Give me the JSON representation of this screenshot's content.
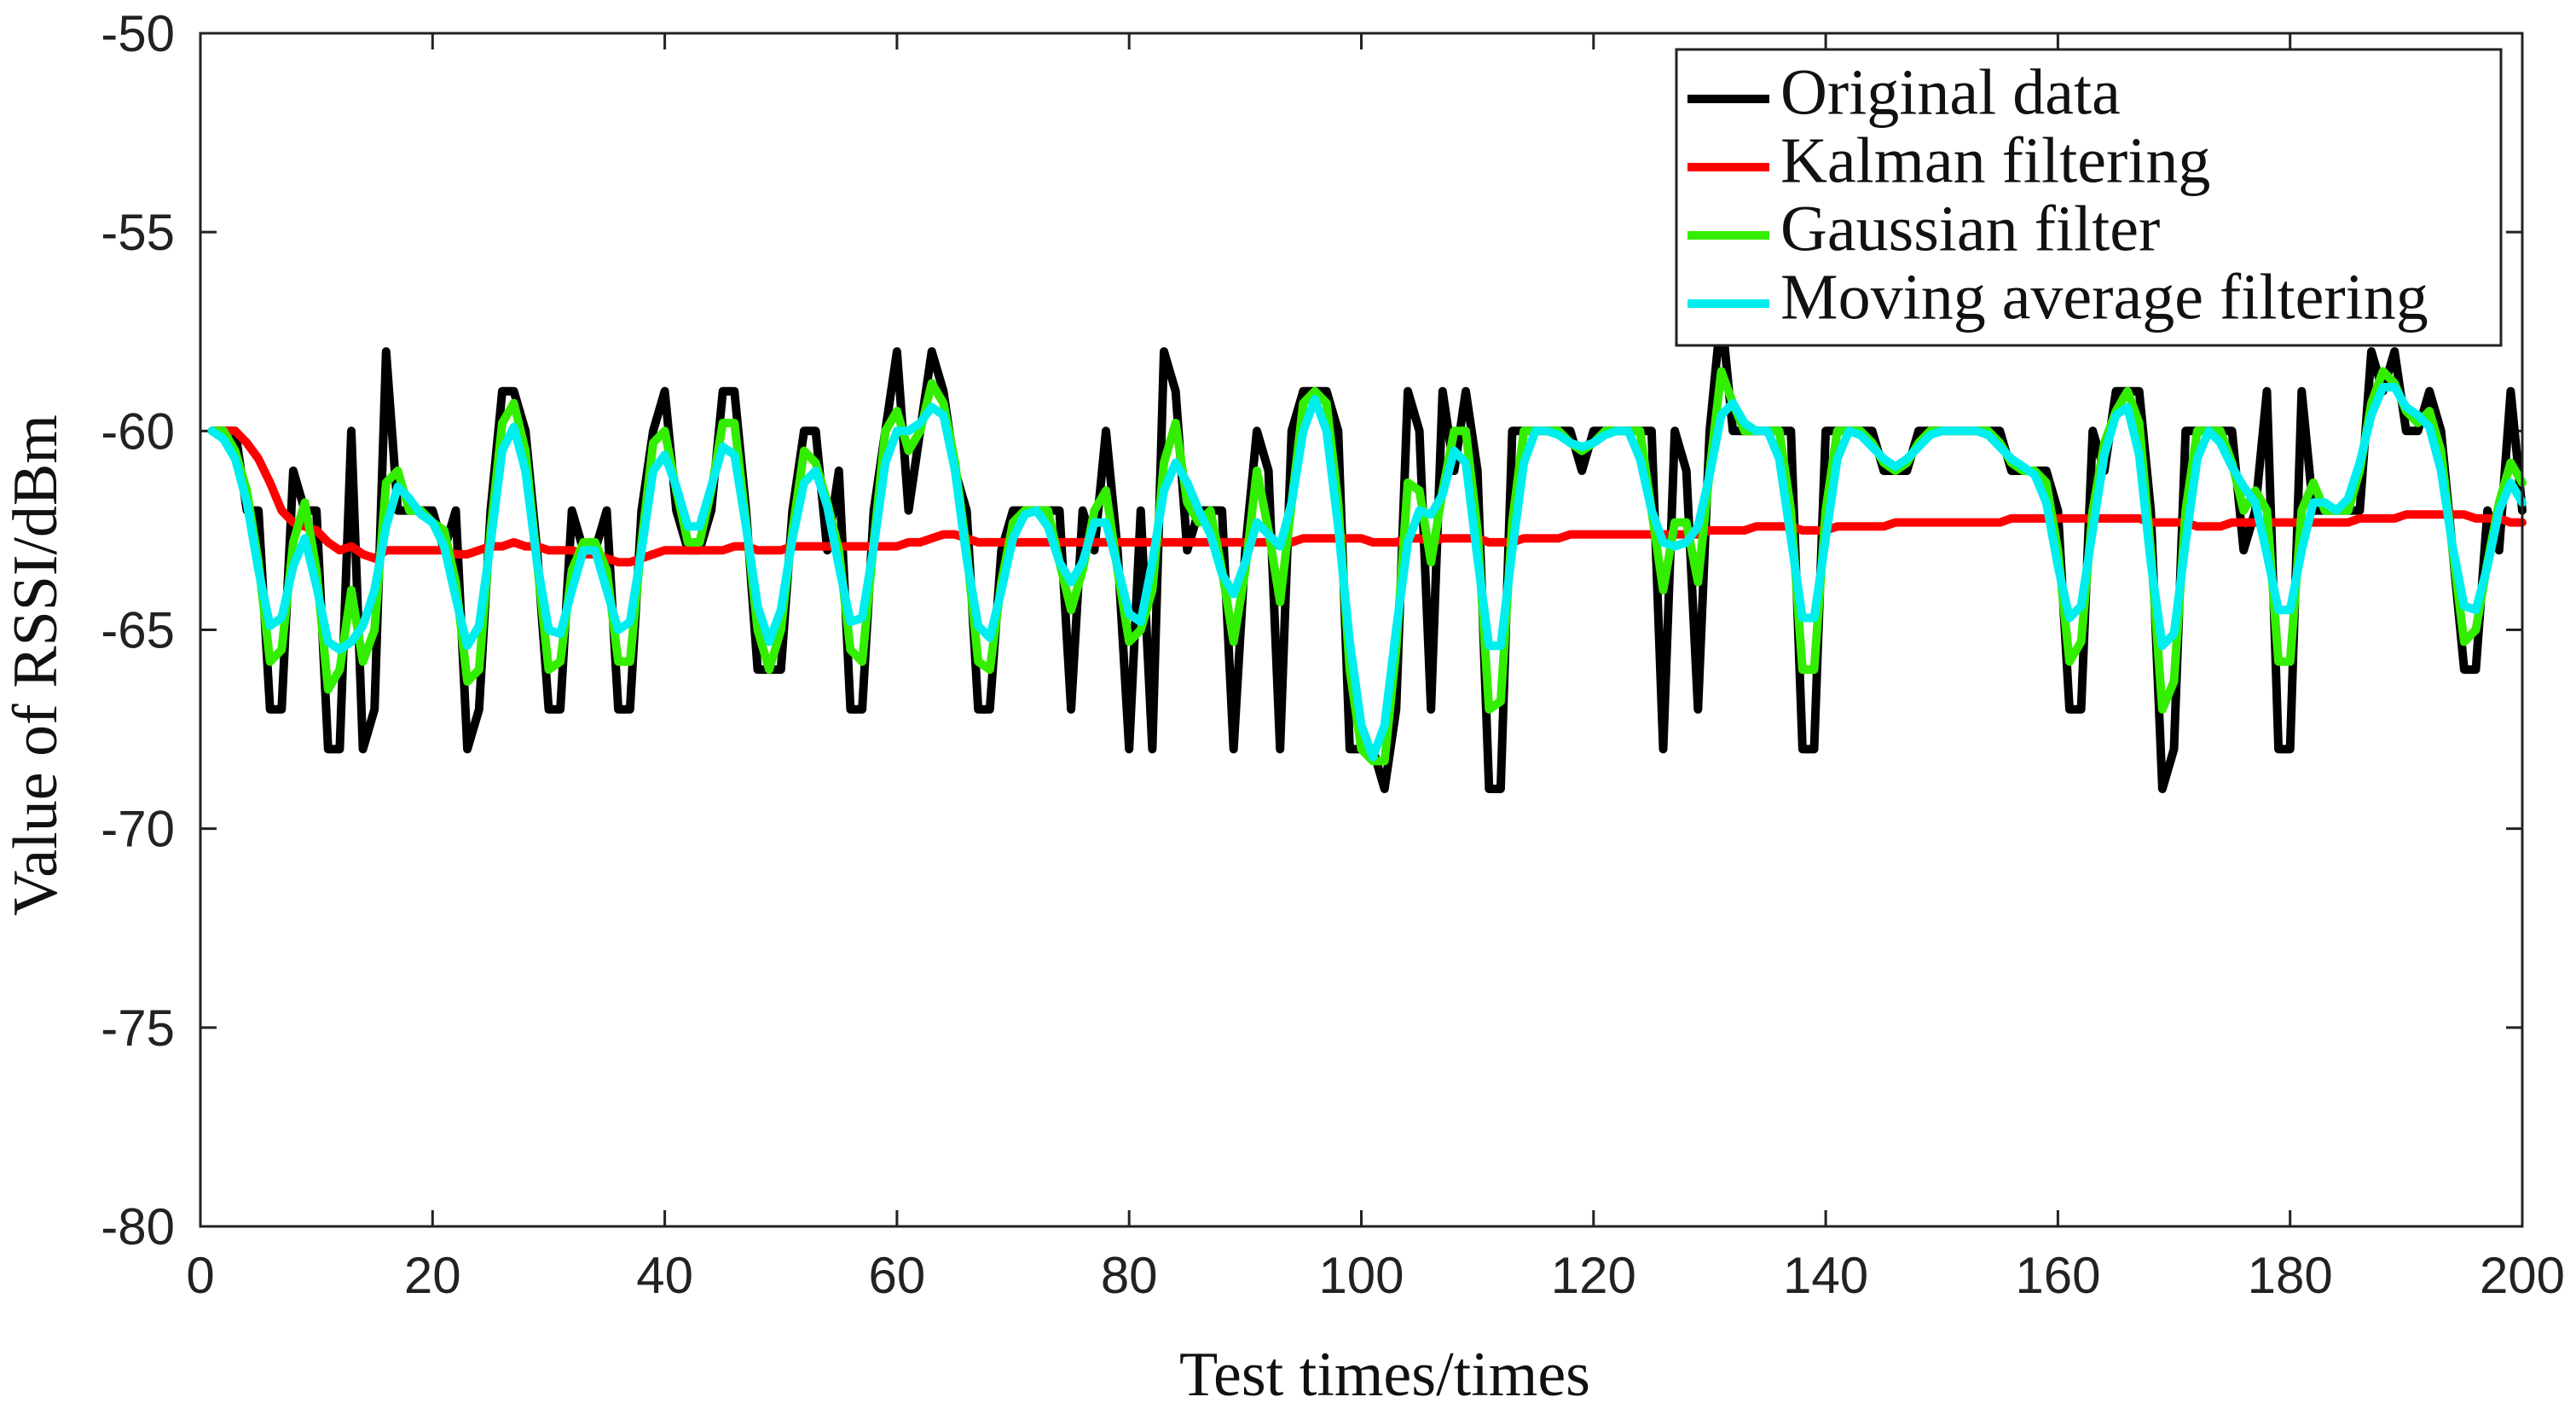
{
  "chart_data": {
    "type": "line",
    "xlabel": "Test times/times",
    "ylabel": "Value of RSSI/dBm",
    "xlim": [
      0,
      200
    ],
    "xticks": [
      0,
      20,
      40,
      60,
      80,
      100,
      120,
      140,
      160,
      180,
      200
    ],
    "ylim": [
      -80,
      -50
    ],
    "yticks": [
      -80,
      -75,
      -70,
      -65,
      -60,
      -55,
      -50
    ],
    "legend": "northeast",
    "x": [
      1,
      2,
      3,
      4,
      5,
      6,
      7,
      8,
      9,
      10,
      11,
      12,
      13,
      14,
      15,
      16,
      17,
      18,
      19,
      20,
      21,
      22,
      23,
      24,
      25,
      26,
      27,
      28,
      29,
      30,
      31,
      32,
      33,
      34,
      35,
      36,
      37,
      38,
      39,
      40,
      41,
      42,
      43,
      44,
      45,
      46,
      47,
      48,
      49,
      50,
      51,
      52,
      53,
      54,
      55,
      56,
      57,
      58,
      59,
      60,
      61,
      62,
      63,
      64,
      65,
      66,
      67,
      68,
      69,
      70,
      71,
      72,
      73,
      74,
      75,
      76,
      77,
      78,
      79,
      80,
      81,
      82,
      83,
      84,
      85,
      86,
      87,
      88,
      89,
      90,
      91,
      92,
      93,
      94,
      95,
      96,
      97,
      98,
      99,
      100,
      101,
      102,
      103,
      104,
      105,
      106,
      107,
      108,
      109,
      110,
      111,
      112,
      113,
      114,
      115,
      116,
      117,
      118,
      119,
      120,
      121,
      122,
      123,
      124,
      125,
      126,
      127,
      128,
      129,
      130,
      131,
      132,
      133,
      134,
      135,
      136,
      137,
      138,
      139,
      140,
      141,
      142,
      143,
      144,
      145,
      146,
      147,
      148,
      149,
      150,
      151,
      152,
      153,
      154,
      155,
      156,
      157,
      158,
      159,
      160,
      161,
      162,
      163,
      164,
      165,
      166,
      167,
      168,
      169,
      170,
      171,
      172,
      173,
      174,
      175,
      176,
      177,
      178,
      179,
      180,
      181,
      182,
      183,
      184,
      185,
      186,
      187,
      188,
      189,
      190,
      191,
      192,
      193,
      194,
      195,
      196,
      197,
      198,
      199,
      200
    ],
    "series": [
      {
        "name": "Original data",
        "color": "#000000",
        "values": [
          -60,
          -60,
          -60,
          -62,
          -62,
          -67,
          -67,
          -61,
          -62,
          -62,
          -68,
          -68,
          -60,
          -68,
          -67,
          -58,
          -62,
          -62,
          -62,
          -62,
          -63,
          -62,
          -68,
          -67,
          -62,
          -59,
          -59,
          -60,
          -63,
          -67,
          -67,
          -62,
          -63,
          -63,
          -62,
          -67,
          -67,
          -62,
          -60,
          -59,
          -62,
          -63,
          -63,
          -62,
          -59,
          -59,
          -62,
          -66,
          -66,
          -66,
          -62,
          -60,
          -60,
          -63,
          -61,
          -67,
          -67,
          -62,
          -60,
          -58,
          -62,
          -60,
          -58,
          -59,
          -61,
          -62,
          -67,
          -67,
          -63,
          -62,
          -62,
          -62,
          -62,
          -62,
          -67,
          -62,
          -63,
          -60,
          -63,
          -68,
          -62,
          -68,
          -58,
          -59,
          -63,
          -62,
          -62,
          -62,
          -68,
          -63,
          -60,
          -61,
          -68,
          -60,
          -59,
          -59,
          -59,
          -60,
          -68,
          -68,
          -68,
          -69,
          -67,
          -59,
          -60,
          -67,
          -59,
          -61,
          -59,
          -61,
          -69,
          -69,
          -60,
          -60,
          -60,
          -60,
          -60,
          -60,
          -61,
          -60,
          -60,
          -60,
          -60,
          -60,
          -60,
          -68,
          -60,
          -61,
          -67,
          -60,
          -57,
          -60,
          -60,
          -60,
          -60,
          -60,
          -60,
          -68,
          -68,
          -60,
          -60,
          -60,
          -60,
          -60,
          -61,
          -61,
          -61,
          -60,
          -60,
          -60,
          -60,
          -60,
          -60,
          -60,
          -60,
          -61,
          -61,
          -61,
          -61,
          -62,
          -67,
          -67,
          -60,
          -61,
          -59,
          -59,
          -59,
          -62,
          -69,
          -68,
          -60,
          -60,
          -60,
          -60,
          -60,
          -63,
          -62,
          -59,
          -68,
          -68,
          -59,
          -62,
          -62,
          -62,
          -62,
          -62,
          -58,
          -59,
          -58,
          -60,
          -60,
          -59,
          -60,
          -63,
          -66,
          -66,
          -62,
          -63,
          -59,
          -62
        ]
      },
      {
        "name": "Kalman filtering",
        "color": "#ff0000",
        "values": [
          -60,
          -60,
          -60,
          -60.3,
          -60.7,
          -61.3,
          -62,
          -62.3,
          -62.4,
          -62.5,
          -62.8,
          -63,
          -62.9,
          -63.1,
          -63.2,
          -63,
          -63,
          -63,
          -63,
          -63,
          -63,
          -63.1,
          -63.1,
          -63,
          -62.9,
          -62.9,
          -62.8,
          -62.9,
          -62.9,
          -63,
          -63,
          -63,
          -63.1,
          -63.1,
          -63.2,
          -63.3,
          -63.3,
          -63.2,
          -63.1,
          -63,
          -63,
          -63,
          -63,
          -63,
          -63,
          -62.9,
          -62.9,
          -63,
          -63,
          -63,
          -62.9,
          -62.9,
          -62.9,
          -62.9,
          -62.9,
          -62.9,
          -62.9,
          -62.9,
          -62.9,
          -62.9,
          -62.8,
          -62.8,
          -62.7,
          -62.6,
          -62.6,
          -62.7,
          -62.8,
          -62.8,
          -62.8,
          -62.8,
          -62.8,
          -62.8,
          -62.8,
          -62.8,
          -62.8,
          -62.8,
          -62.8,
          -62.8,
          -62.8,
          -62.8,
          -62.8,
          -62.8,
          -62.8,
          -62.8,
          -62.8,
          -62.8,
          -62.8,
          -62.8,
          -62.8,
          -62.8,
          -62.8,
          -62.8,
          -62.8,
          -62.8,
          -62.7,
          -62.7,
          -62.7,
          -62.7,
          -62.7,
          -62.7,
          -62.8,
          -62.8,
          -62.8,
          -62.7,
          -62.7,
          -62.8,
          -62.7,
          -62.7,
          -62.7,
          -62.7,
          -62.8,
          -62.8,
          -62.8,
          -62.7,
          -62.7,
          -62.7,
          -62.7,
          -62.6,
          -62.6,
          -62.6,
          -62.6,
          -62.6,
          -62.6,
          -62.6,
          -62.6,
          -62.6,
          -62.6,
          -62.6,
          -62.6,
          -62.5,
          -62.5,
          -62.5,
          -62.5,
          -62.4,
          -62.4,
          -62.4,
          -62.4,
          -62.5,
          -62.5,
          -62.5,
          -62.4,
          -62.4,
          -62.4,
          -62.4,
          -62.4,
          -62.3,
          -62.3,
          -62.3,
          -62.3,
          -62.3,
          -62.3,
          -62.3,
          -62.3,
          -62.3,
          -62.3,
          -62.2,
          -62.2,
          -62.2,
          -62.2,
          -62.2,
          -62.2,
          -62.2,
          -62.2,
          -62.2,
          -62.2,
          -62.2,
          -62.2,
          -62.3,
          -62.3,
          -62.3,
          -62.3,
          -62.4,
          -62.4,
          -62.4,
          -62.3,
          -62.3,
          -62.3,
          -62.3,
          -62.3,
          -62.3,
          -62.3,
          -62.3,
          -62.3,
          -62.3,
          -62.3,
          -62.2,
          -62.2,
          -62.2,
          -62.2,
          -62.1,
          -62.1,
          -62.1,
          -62.1,
          -62.1,
          -62.1,
          -62.2,
          -62.2,
          -62.2,
          -62.3,
          -62.3
        ]
      },
      {
        "name": "Gaussian filter",
        "color": "#33ee00",
        "values": [
          -60,
          -60,
          -60.5,
          -61.5,
          -63.3,
          -65.8,
          -65.5,
          -62.8,
          -61.8,
          -63.5,
          -66.5,
          -66,
          -64,
          -65.8,
          -65,
          -61.3,
          -61,
          -62,
          -62,
          -62.3,
          -62.5,
          -63.8,
          -66.3,
          -66,
          -62.5,
          -59.8,
          -59.3,
          -60.5,
          -63.3,
          -66,
          -65.8,
          -63.5,
          -62.8,
          -62.8,
          -63.5,
          -65.8,
          -65.8,
          -62.8,
          -60.3,
          -60,
          -61.5,
          -62.8,
          -62.8,
          -61.5,
          -59.8,
          -59.8,
          -62.3,
          -65,
          -66,
          -65,
          -62.5,
          -60.5,
          -60.8,
          -61.8,
          -63,
          -65.5,
          -65.8,
          -62.8,
          -60,
          -59.5,
          -60.5,
          -60,
          -58.8,
          -59.3,
          -60.8,
          -63,
          -65.8,
          -66,
          -63.8,
          -62.3,
          -62,
          -62,
          -62,
          -63.3,
          -64.5,
          -63.5,
          -62,
          -61.5,
          -63.5,
          -65.3,
          -65,
          -64,
          -60.8,
          -59.8,
          -61.8,
          -62.3,
          -62,
          -63.5,
          -65.3,
          -63.5,
          -61,
          -62.5,
          -64.3,
          -61.8,
          -59.3,
          -59,
          -59.3,
          -61.8,
          -66,
          -68,
          -68.3,
          -68.3,
          -65.5,
          -61.3,
          -61.5,
          -63.3,
          -61.5,
          -60,
          -60,
          -62.5,
          -67,
          -66.8,
          -62.3,
          -60,
          -60,
          -60,
          -60,
          -60.3,
          -60.5,
          -60.3,
          -60,
          -60,
          -60,
          -60,
          -62,
          -64,
          -62.3,
          -62.3,
          -63.8,
          -61,
          -58.5,
          -59.3,
          -60,
          -60,
          -60,
          -60,
          -62,
          -66,
          -66,
          -62,
          -60,
          -60,
          -60,
          -60.3,
          -60.8,
          -61,
          -60.8,
          -60.3,
          -60,
          -60,
          -60,
          -60,
          -60,
          -60,
          -60.3,
          -60.8,
          -61,
          -61,
          -61.3,
          -63,
          -65.8,
          -65.3,
          -62,
          -60.3,
          -59.5,
          -59,
          -59.8,
          -63,
          -67,
          -66.3,
          -62,
          -60,
          -60,
          -60,
          -60.8,
          -62,
          -61.5,
          -62,
          -65.8,
          -65.8,
          -62,
          -61.3,
          -62,
          -62,
          -62,
          -61,
          -59.3,
          -58.5,
          -58.8,
          -59.5,
          -59.8,
          -59.5,
          -60.5,
          -63,
          -65.3,
          -65,
          -63.3,
          -61.8,
          -60.8,
          -61.3
        ]
      },
      {
        "name": "Moving average filtering",
        "color": "#00eeee",
        "values": [
          -60,
          -60.2,
          -60.7,
          -61.8,
          -63.5,
          -64.9,
          -64.7,
          -63.4,
          -62.7,
          -63.9,
          -65.3,
          -65.5,
          -65.3,
          -64.9,
          -64,
          -62.4,
          -61.4,
          -61.7,
          -62.1,
          -62.3,
          -62.9,
          -64.2,
          -65.4,
          -64.9,
          -62.8,
          -60.5,
          -59.9,
          -61,
          -63.3,
          -65,
          -65.1,
          -64,
          -63,
          -63,
          -64,
          -65,
          -64.8,
          -63,
          -61,
          -60.6,
          -61.4,
          -62.4,
          -62.4,
          -61.4,
          -60.4,
          -60.6,
          -62.4,
          -64.4,
          -65.3,
          -64.5,
          -62.7,
          -61.3,
          -61,
          -61.9,
          -63.4,
          -64.8,
          -64.7,
          -62.9,
          -60.8,
          -60,
          -60,
          -59.8,
          -59.4,
          -59.6,
          -61,
          -63.2,
          -64.9,
          -65.2,
          -64,
          -62.7,
          -62.1,
          -62,
          -62.4,
          -63.3,
          -63.8,
          -63.3,
          -62.3,
          -62.3,
          -63.4,
          -64.6,
          -64.8,
          -63.3,
          -61.5,
          -60.8,
          -61.3,
          -62,
          -62.6,
          -63.6,
          -64.1,
          -63.3,
          -62.3,
          -62.6,
          -62.9,
          -61.8,
          -60,
          -59.2,
          -60,
          -62.4,
          -65.3,
          -67.4,
          -68.2,
          -67.4,
          -65,
          -62.8,
          -62,
          -62.1,
          -61.6,
          -60.5,
          -60.8,
          -63.2,
          -65.4,
          -65.4,
          -63,
          -60.8,
          -60,
          -60,
          -60.1,
          -60.3,
          -60.4,
          -60.3,
          -60.1,
          -60,
          -60,
          -60.7,
          -62,
          -62.8,
          -62.9,
          -62.8,
          -62.4,
          -61.1,
          -59.6,
          -59.3,
          -59.8,
          -60,
          -60,
          -60.7,
          -62.7,
          -64.7,
          -64.7,
          -62.7,
          -60.7,
          -60,
          -60.1,
          -60.4,
          -60.7,
          -60.9,
          -60.7,
          -60.4,
          -60.1,
          -60,
          -60,
          -60,
          -60,
          -60.1,
          -60.4,
          -60.7,
          -60.9,
          -61.1,
          -61.8,
          -63.4,
          -64.7,
          -64.4,
          -62.5,
          -60.6,
          -59.6,
          -59.4,
          -60.6,
          -63.3,
          -65.4,
          -65.1,
          -62.8,
          -60.7,
          -60,
          -60.3,
          -60.9,
          -61.4,
          -61.8,
          -63.1,
          -64.5,
          -64.5,
          -63,
          -61.8,
          -61.8,
          -62,
          -61.7,
          -60.8,
          -59.6,
          -58.9,
          -58.9,
          -59.4,
          -59.6,
          -59.9,
          -61,
          -62.9,
          -64.4,
          -64.5,
          -63.4,
          -62,
          -61.3,
          -61.8
        ]
      }
    ]
  }
}
